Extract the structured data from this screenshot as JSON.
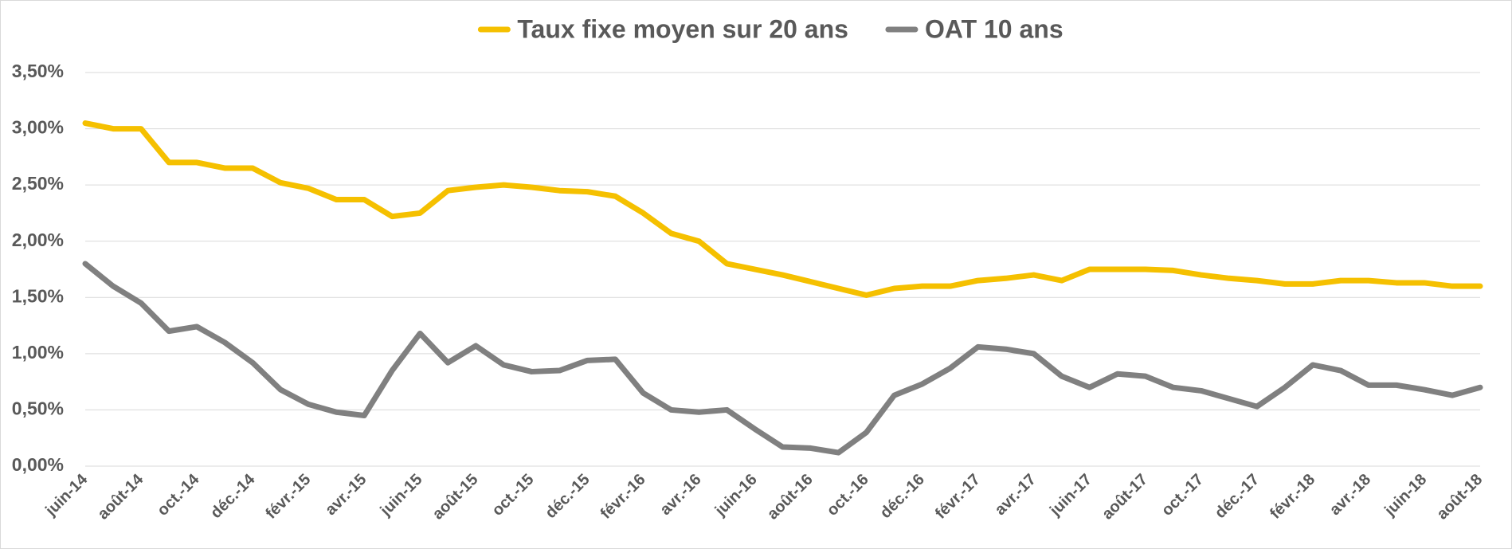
{
  "chart_data": {
    "type": "line",
    "categories": [
      "juin-14",
      null,
      "août-14",
      null,
      "oct.-14",
      null,
      "déc.-14",
      null,
      "févr.-15",
      null,
      "avr.-15",
      null,
      "juin-15",
      null,
      "août-15",
      null,
      "oct.-15",
      null,
      "déc.-15",
      null,
      "févr.-16",
      null,
      "avr.-16",
      null,
      "juin-16",
      null,
      "août-16",
      null,
      "oct.-16",
      null,
      "déc.-16",
      null,
      "févr.-17",
      null,
      "avr.-17",
      null,
      "juin-17",
      null,
      "août-17",
      null,
      "oct.-17",
      null,
      "déc.-17",
      null,
      "févr.-18",
      null,
      "avr.-18",
      null,
      "juin-18",
      null,
      "août-18"
    ],
    "series": [
      {
        "name": "Taux fixe moyen sur 20 ans",
        "color": "#f5c000",
        "values": [
          3.05,
          3.0,
          3.0,
          2.7,
          2.7,
          2.65,
          2.65,
          2.52,
          2.47,
          2.37,
          2.37,
          2.22,
          2.25,
          2.45,
          2.48,
          2.5,
          2.48,
          2.45,
          2.44,
          2.4,
          2.25,
          2.07,
          2.0,
          1.8,
          1.75,
          1.7,
          1.64,
          1.58,
          1.52,
          1.58,
          1.6,
          1.6,
          1.65,
          1.67,
          1.7,
          1.65,
          1.75,
          1.75,
          1.75,
          1.74,
          1.7,
          1.67,
          1.65,
          1.62,
          1.62,
          1.65,
          1.65,
          1.63,
          1.63,
          1.6,
          1.6
        ]
      },
      {
        "name": "OAT 10 ans",
        "color": "#808080",
        "values": [
          1.8,
          1.6,
          1.45,
          1.2,
          1.24,
          1.1,
          0.92,
          0.68,
          0.55,
          0.48,
          0.45,
          0.85,
          1.18,
          0.92,
          1.07,
          0.9,
          0.84,
          0.85,
          0.94,
          0.95,
          0.65,
          0.5,
          0.48,
          0.5,
          0.33,
          0.17,
          0.16,
          0.12,
          0.3,
          0.63,
          0.73,
          0.87,
          1.06,
          1.04,
          1.0,
          0.8,
          0.7,
          0.82,
          0.8,
          0.7,
          0.67,
          0.6,
          0.53,
          0.7,
          0.9,
          0.85,
          0.72,
          0.72,
          0.68,
          0.63,
          0.7
        ]
      }
    ],
    "ylim": [
      0,
      3.5
    ],
    "yticks": [
      {
        "value": 0,
        "label": "0,00%"
      },
      {
        "value": 0.5,
        "label": "0,50%"
      },
      {
        "value": 1,
        "label": "1,00%"
      },
      {
        "value": 1.5,
        "label": "1,50%"
      },
      {
        "value": 2,
        "label": "2,00%"
      },
      {
        "value": 2.5,
        "label": "2,50%"
      },
      {
        "value": 3,
        "label": "3,00%"
      },
      {
        "value": 3.5,
        "label": "3,50%"
      }
    ],
    "grid": true,
    "legend": "top"
  }
}
